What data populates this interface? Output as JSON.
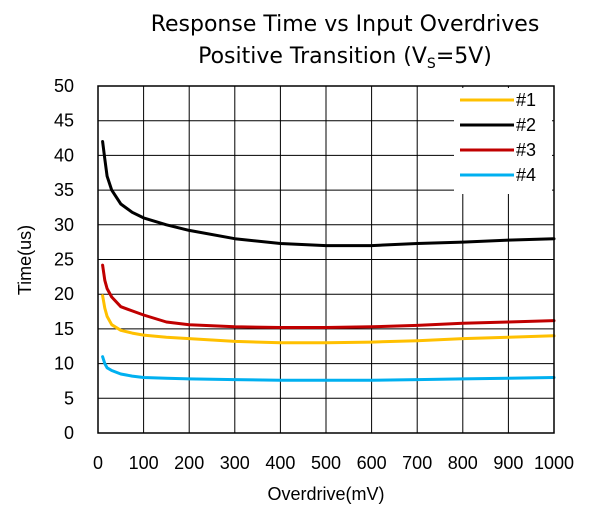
{
  "chart_data": {
    "type": "line",
    "title": "Response Time vs Input Overdrives",
    "subtitle_prefix": "Positive Transition (V",
    "subtitle_sub": "S",
    "subtitle_suffix": "=5V)",
    "xlabel": "Overdrive(mV)",
    "ylabel": "Time(us)",
    "xlim": [
      0,
      1000
    ],
    "ylim": [
      0,
      50
    ],
    "x_ticks": [
      0,
      100,
      200,
      300,
      400,
      500,
      600,
      700,
      800,
      900,
      1000
    ],
    "y_ticks": [
      0,
      5,
      10,
      15,
      20,
      25,
      30,
      35,
      40,
      45,
      50
    ],
    "grid": true,
    "legend_position": "top-right",
    "series": [
      {
        "name": "#1",
        "color": "#FFC000",
        "x": [
          10,
          15,
          20,
          30,
          50,
          75,
          100,
          150,
          200,
          300,
          400,
          500,
          600,
          700,
          800,
          900,
          1000
        ],
        "y": [
          19.8,
          18.0,
          16.8,
          15.6,
          14.8,
          14.4,
          14.1,
          13.8,
          13.6,
          13.2,
          13.0,
          13.0,
          13.1,
          13.3,
          13.6,
          13.8,
          14.0
        ]
      },
      {
        "name": "#2",
        "color": "#000000",
        "x": [
          10,
          15,
          20,
          30,
          50,
          75,
          100,
          150,
          200,
          300,
          400,
          500,
          600,
          700,
          800,
          900,
          1000
        ],
        "y": [
          42.0,
          39.5,
          37.0,
          35.0,
          33.0,
          31.8,
          31.0,
          30.0,
          29.2,
          28.0,
          27.3,
          27.0,
          27.0,
          27.3,
          27.5,
          27.8,
          28.0
        ]
      },
      {
        "name": "#3",
        "color": "#C00000",
        "x": [
          10,
          15,
          20,
          30,
          50,
          75,
          100,
          150,
          200,
          300,
          400,
          500,
          600,
          700,
          800,
          900,
          1000
        ],
        "y": [
          24.2,
          22.0,
          20.8,
          19.6,
          18.2,
          17.6,
          17.0,
          16.0,
          15.6,
          15.3,
          15.2,
          15.2,
          15.3,
          15.5,
          15.8,
          16.0,
          16.2
        ]
      },
      {
        "name": "#4",
        "color": "#00B0F0",
        "x": [
          10,
          15,
          20,
          30,
          50,
          75,
          100,
          150,
          200,
          300,
          400,
          500,
          600,
          700,
          800,
          900,
          1000
        ],
        "y": [
          11.0,
          10.0,
          9.4,
          9.0,
          8.5,
          8.2,
          8.0,
          7.9,
          7.8,
          7.7,
          7.6,
          7.6,
          7.6,
          7.7,
          7.8,
          7.9,
          8.0
        ]
      }
    ]
  }
}
